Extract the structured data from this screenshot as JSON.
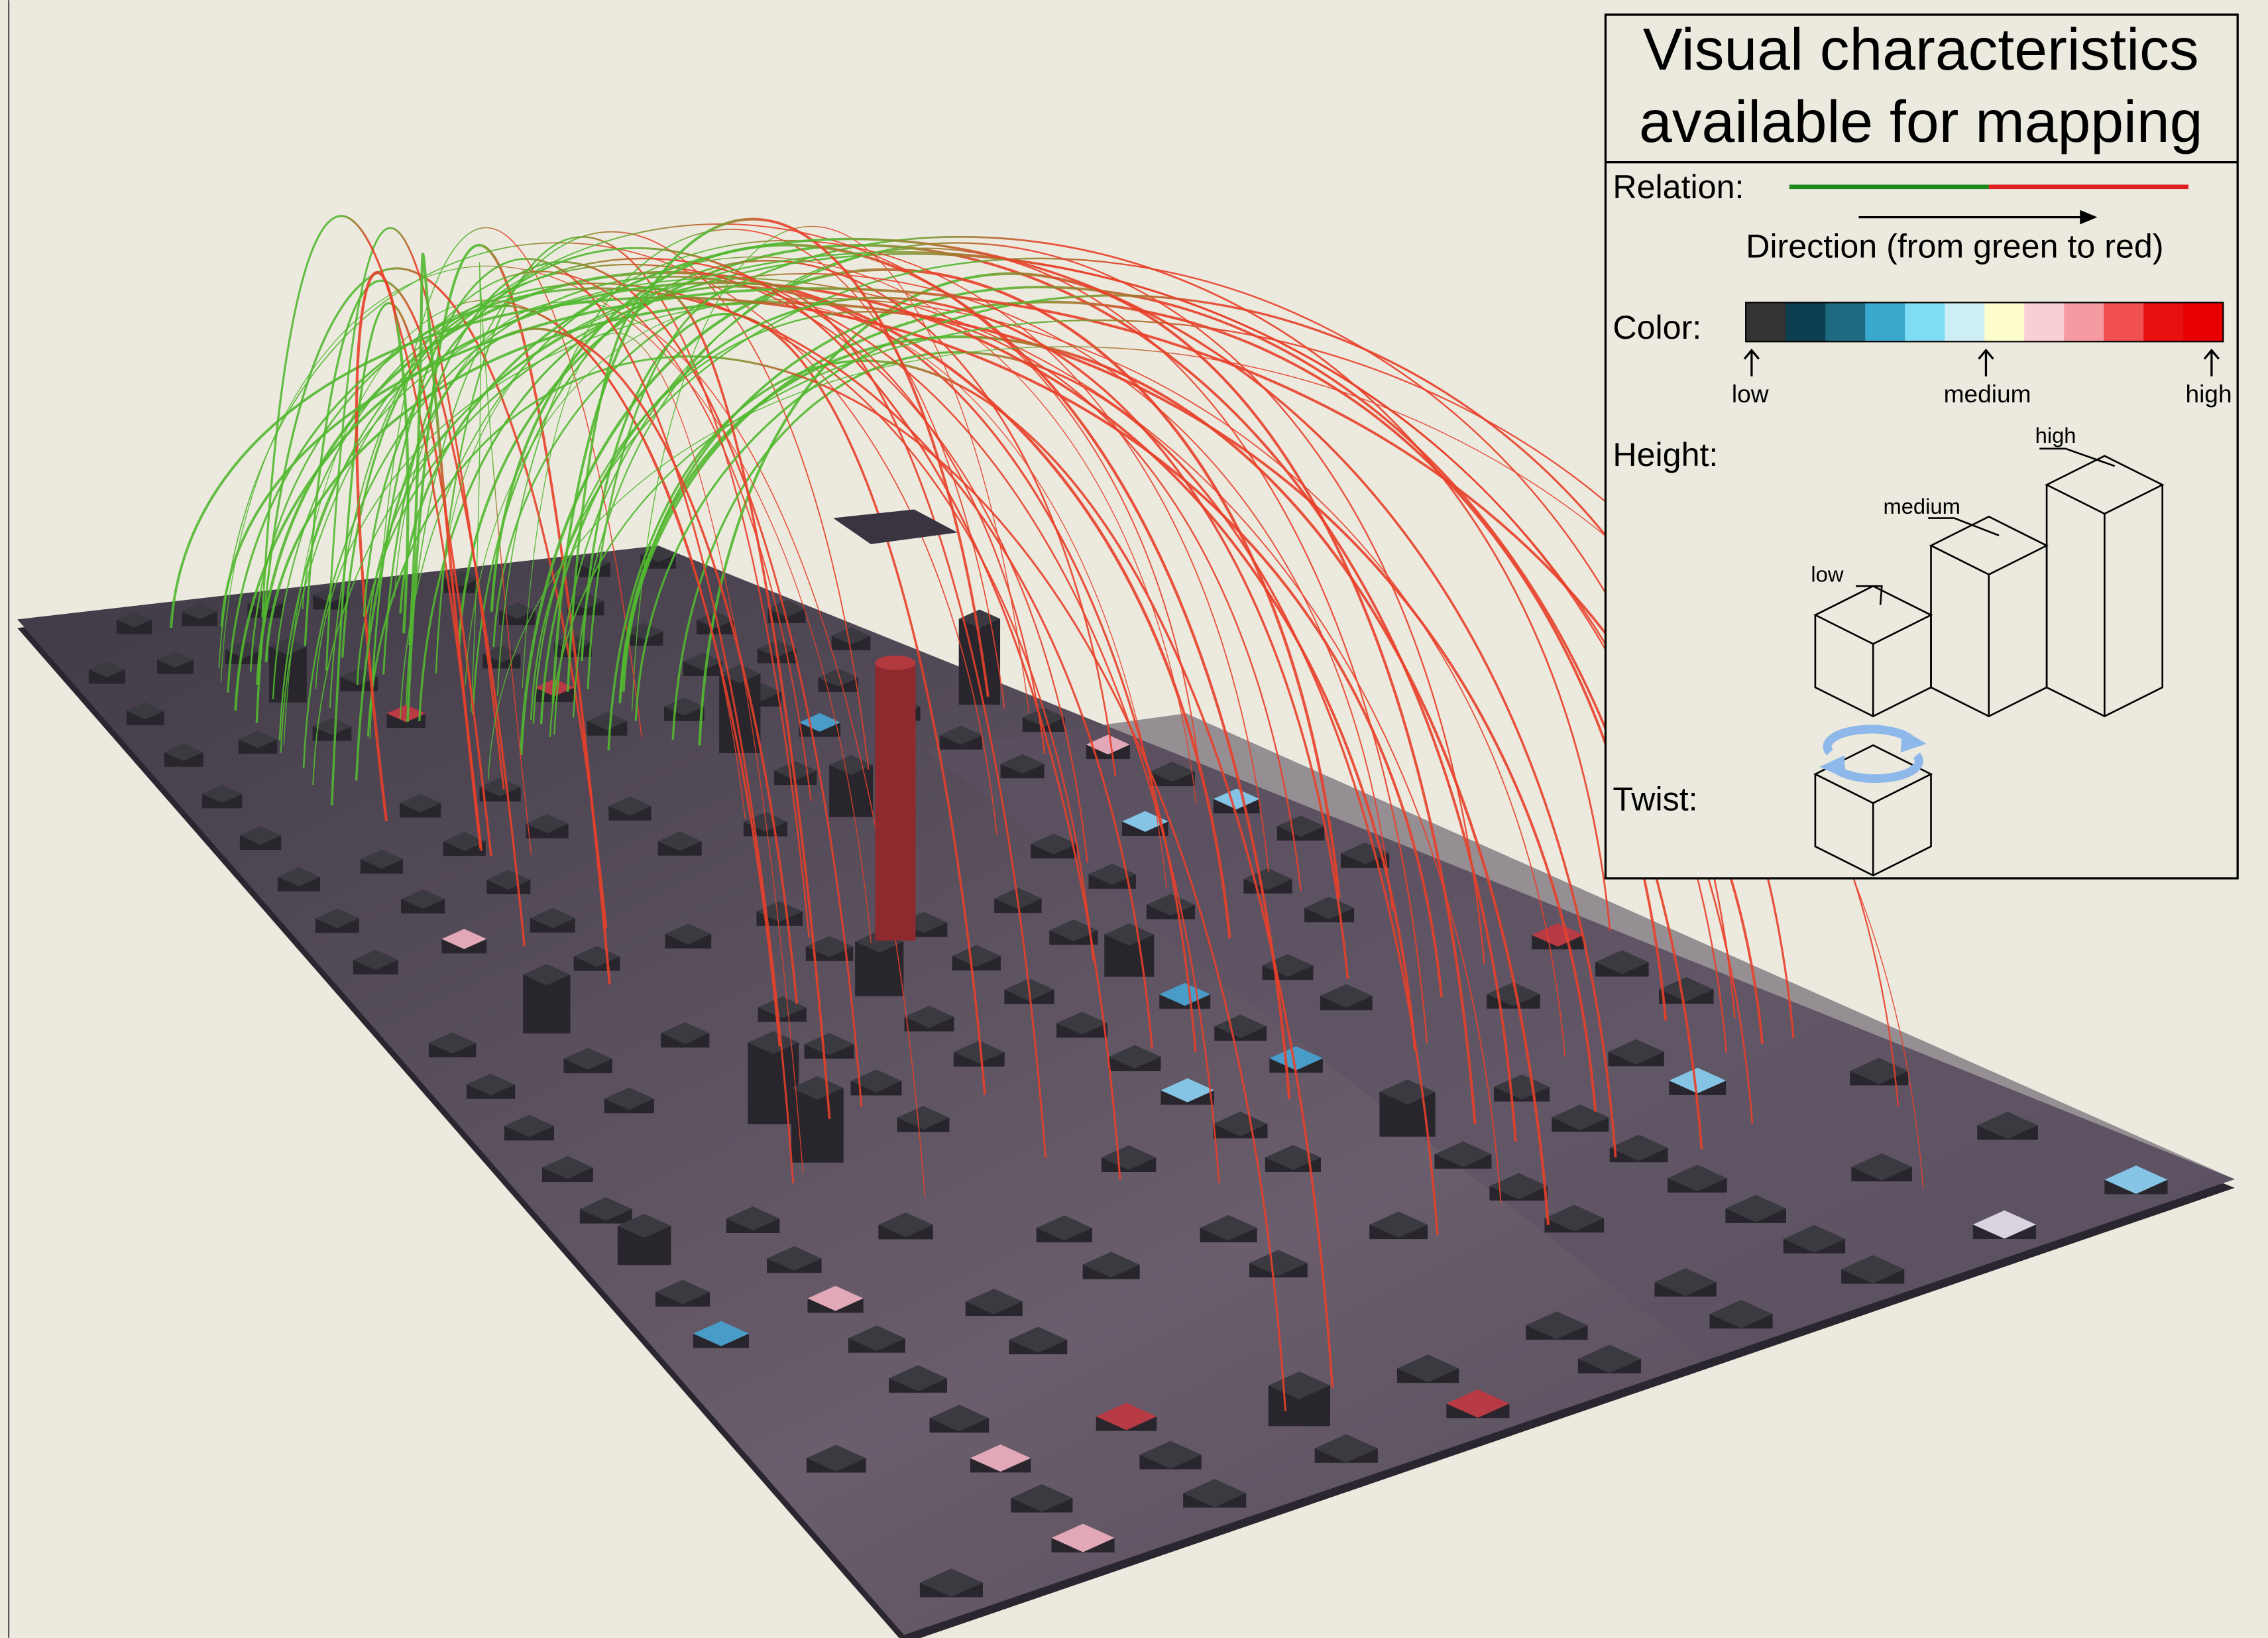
{
  "legend": {
    "title": [
      "Visual characteristics",
      "available for mapping"
    ],
    "relation": {
      "label": "Relation:",
      "direction": "Direction (from green to red)"
    },
    "color": {
      "label": "Color:",
      "scale_labels": [
        "low",
        "medium",
        "high"
      ]
    },
    "height": {
      "label": "Height:",
      "bar_labels": [
        "low",
        "medium",
        "high"
      ]
    },
    "twist": {
      "label": "Twist:"
    }
  }
}
